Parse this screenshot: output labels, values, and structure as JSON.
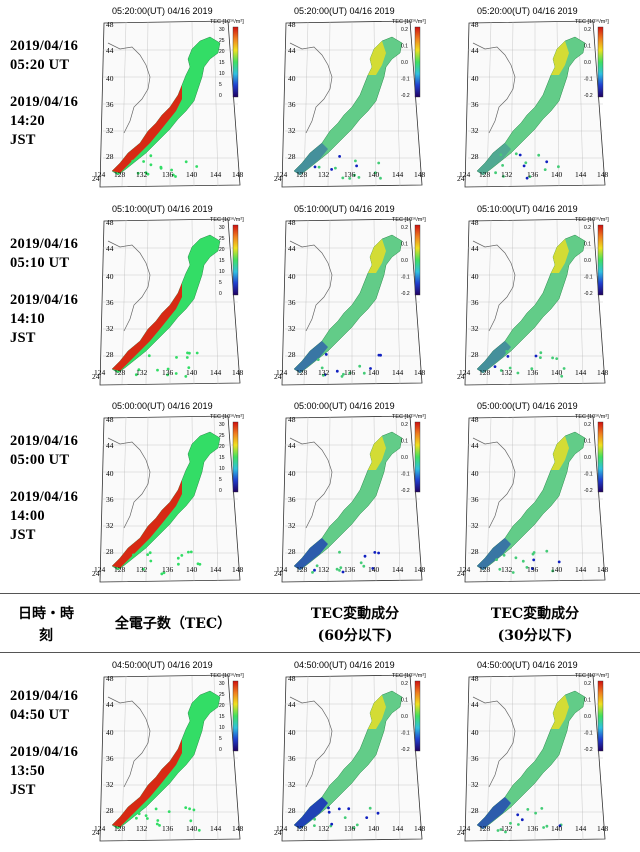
{
  "header": {
    "col_datetime": "日時・時刻",
    "col_datetime_line1": "日時・時",
    "col_datetime_line2": "刻",
    "col_tec": "全電子数（TEC）",
    "col_60_line1": "TEC変動成分",
    "col_60_line2": "(60分以下)",
    "col_30_line1": "TEC変動成分",
    "col_30_line2": "(30分以下)"
  },
  "rows": [
    {
      "date_ut": "2019/04/16",
      "time_ut": "05:20 UT",
      "date_jst": "2019/04/16",
      "time_jst": "14:20",
      "jst": "JST",
      "map_title": "05:20:00(UT)  04/16 2019"
    },
    {
      "date_ut": "2019/04/16",
      "time_ut": "05:10 UT",
      "date_jst": "2019/04/16",
      "time_jst": "14:10",
      "jst": "JST",
      "map_title": "05:10:00(UT)  04/16 2019"
    },
    {
      "date_ut": "2019/04/16",
      "time_ut": "05:00 UT",
      "date_jst": "2019/04/16",
      "time_jst": "14:00",
      "jst": "JST",
      "map_title": "05:00:00(UT)  04/16 2019"
    },
    {
      "date_ut": "2019/04/16",
      "time_ut": "04:50 UT",
      "date_jst": "2019/04/16",
      "time_jst": "13:50",
      "jst": "JST",
      "map_title": "04:50:00(UT)  04/16 2019"
    }
  ],
  "map": {
    "lat_labels": [
      "48",
      "44",
      "40",
      "36",
      "32",
      "28",
      "24"
    ],
    "lon_labels": [
      "124",
      "128",
      "132",
      "136",
      "140",
      "144",
      "148"
    ],
    "colorbar_title_tec": "TEC [10¹⁶/m²]",
    "colorbar_ticks_tec": [
      "30",
      "25",
      "20",
      "15",
      "10",
      "5",
      "0"
    ],
    "colorbar_title_dtec": "TEC [10¹⁶/m²]",
    "colorbar_ticks_dtec": [
      "0.2",
      "0.1",
      "0.0",
      "-0.1",
      "-0.2"
    ]
  },
  "colors": {
    "tec_high": "#e02010",
    "tec_mid": "#33dd66",
    "dtec_pos": "#f0e020",
    "dtec_neg": "#1020c0",
    "rule": "#555555"
  }
}
